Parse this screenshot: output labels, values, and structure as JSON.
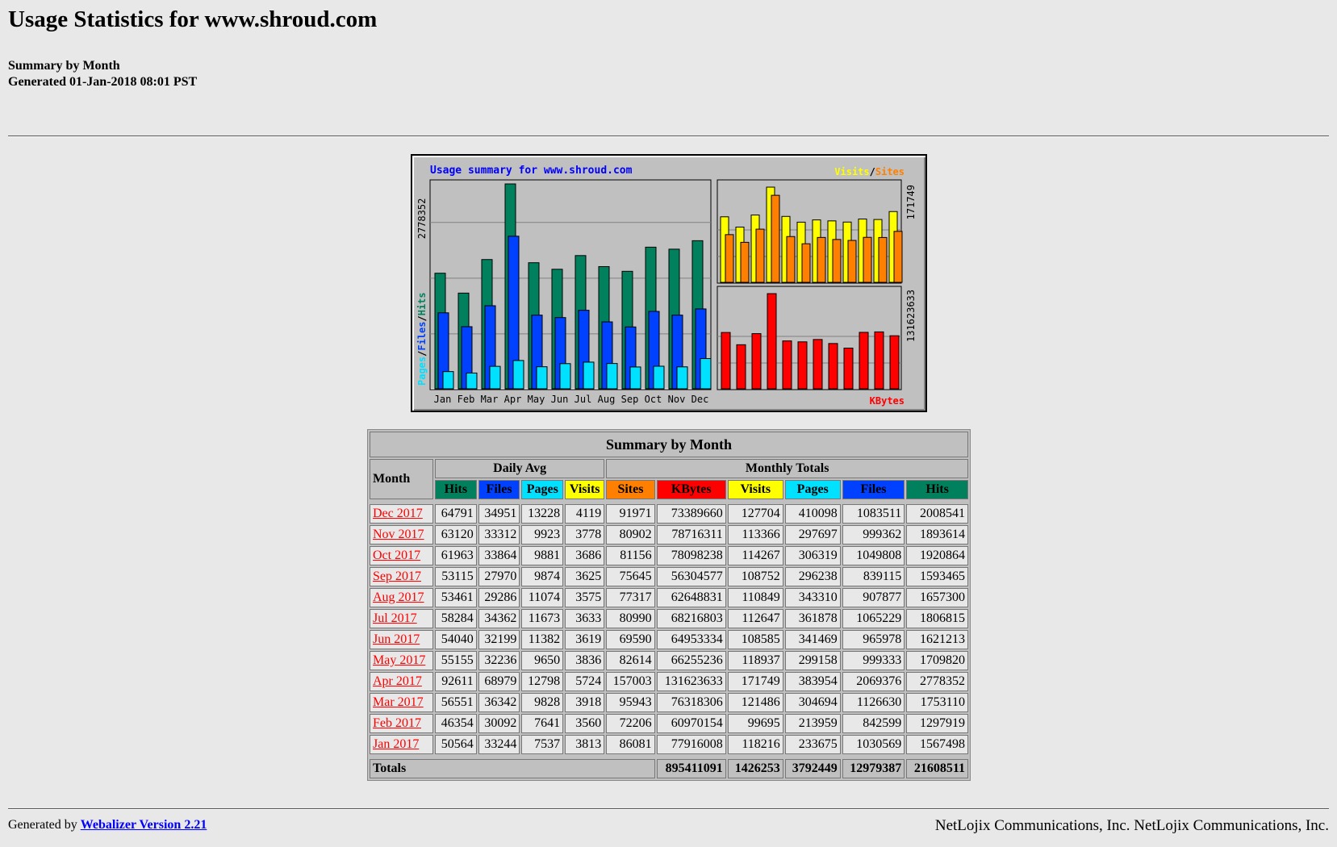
{
  "page": {
    "title": "Usage Statistics for www.shroud.com",
    "subtitle": "Summary by Month",
    "generated": "Generated 01-Jan-2018 08:01 PST"
  },
  "colors": {
    "hits": "#00805C",
    "files": "#0040FF",
    "pages": "#00E0FF",
    "visits": "#FFFF00",
    "sites": "#FF8000",
    "kbytes": "#FF0000"
  },
  "chart_data": {
    "type": "bar",
    "title": "Usage summary for www.shroud.com",
    "categories": [
      "Jan",
      "Feb",
      "Mar",
      "Apr",
      "May",
      "Jun",
      "Jul",
      "Aug",
      "Sep",
      "Oct",
      "Nov",
      "Dec"
    ],
    "left_panel": {
      "ylabel_pages": "Pages",
      "ylabel_files": "Files",
      "ylabel_hits": "Hits",
      "ymax": 2778352,
      "ymax_label": "2778352",
      "series": [
        {
          "name": "Hits",
          "color": "#00805C",
          "values": [
            1567498,
            1297919,
            1753110,
            2778352,
            1709820,
            1621213,
            1806815,
            1657300,
            1593465,
            1920864,
            1893614,
            2008541
          ]
        },
        {
          "name": "Files",
          "color": "#0040FF",
          "values": [
            1030569,
            842599,
            1126630,
            2069376,
            999333,
            965978,
            1065229,
            907877,
            839115,
            1049808,
            999362,
            1083511
          ]
        },
        {
          "name": "Pages",
          "color": "#00E0FF",
          "values": [
            233675,
            213959,
            304694,
            383954,
            299158,
            341469,
            361878,
            343310,
            296238,
            306319,
            297697,
            410098
          ]
        }
      ]
    },
    "right_top_panel": {
      "legend_visits": "Visits",
      "legend_sep": "/",
      "legend_sites": "Sites",
      "ymax": 171749,
      "ymax_label": "171749",
      "series": [
        {
          "name": "Visits",
          "color": "#FFFF00",
          "values": [
            118216,
            99695,
            121486,
            171749,
            118937,
            108585,
            112647,
            110849,
            108752,
            114267,
            113366,
            127704
          ]
        },
        {
          "name": "Sites",
          "color": "#FF8000",
          "values": [
            86081,
            72206,
            95943,
            157003,
            82614,
            69590,
            80990,
            77317,
            75645,
            81156,
            80902,
            91971
          ]
        }
      ]
    },
    "right_bottom_panel": {
      "legend": "KBytes",
      "ymax": 131623633,
      "ymax_label": "131623633",
      "series": [
        {
          "name": "KBytes",
          "color": "#FF0000",
          "values": [
            77916008,
            60970154,
            76318306,
            131623633,
            66255236,
            64953334,
            68216803,
            62648831,
            56304577,
            78098238,
            78716311,
            73389660
          ]
        }
      ]
    }
  },
  "table": {
    "title": "Summary by Month",
    "month_header": "Month",
    "daily_avg_header": "Daily Avg",
    "monthly_totals_header": "Monthly Totals",
    "daily_cols": [
      "Hits",
      "Files",
      "Pages",
      "Visits"
    ],
    "monthly_cols": [
      "Sites",
      "KBytes",
      "Visits",
      "Pages",
      "Files",
      "Hits"
    ],
    "rows": [
      {
        "month": "Dec 2017",
        "d": [
          "64791",
          "34951",
          "13228",
          "4119"
        ],
        "m": [
          "91971",
          "73389660",
          "127704",
          "410098",
          "1083511",
          "2008541"
        ]
      },
      {
        "month": "Nov 2017",
        "d": [
          "63120",
          "33312",
          "9923",
          "3778"
        ],
        "m": [
          "80902",
          "78716311",
          "113366",
          "297697",
          "999362",
          "1893614"
        ]
      },
      {
        "month": "Oct 2017",
        "d": [
          "61963",
          "33864",
          "9881",
          "3686"
        ],
        "m": [
          "81156",
          "78098238",
          "114267",
          "306319",
          "1049808",
          "1920864"
        ]
      },
      {
        "month": "Sep 2017",
        "d": [
          "53115",
          "27970",
          "9874",
          "3625"
        ],
        "m": [
          "75645",
          "56304577",
          "108752",
          "296238",
          "839115",
          "1593465"
        ]
      },
      {
        "month": "Aug 2017",
        "d": [
          "53461",
          "29286",
          "11074",
          "3575"
        ],
        "m": [
          "77317",
          "62648831",
          "110849",
          "343310",
          "907877",
          "1657300"
        ]
      },
      {
        "month": "Jul 2017",
        "d": [
          "58284",
          "34362",
          "11673",
          "3633"
        ],
        "m": [
          "80990",
          "68216803",
          "112647",
          "361878",
          "1065229",
          "1806815"
        ]
      },
      {
        "month": "Jun 2017",
        "d": [
          "54040",
          "32199",
          "11382",
          "3619"
        ],
        "m": [
          "69590",
          "64953334",
          "108585",
          "341469",
          "965978",
          "1621213"
        ]
      },
      {
        "month": "May 2017",
        "d": [
          "55155",
          "32236",
          "9650",
          "3836"
        ],
        "m": [
          "82614",
          "66255236",
          "118937",
          "299158",
          "999333",
          "1709820"
        ]
      },
      {
        "month": "Apr 2017",
        "d": [
          "92611",
          "68979",
          "12798",
          "5724"
        ],
        "m": [
          "157003",
          "131623633",
          "171749",
          "383954",
          "2069376",
          "2778352"
        ]
      },
      {
        "month": "Mar 2017",
        "d": [
          "56551",
          "36342",
          "9828",
          "3918"
        ],
        "m": [
          "95943",
          "76318306",
          "121486",
          "304694",
          "1126630",
          "1753110"
        ]
      },
      {
        "month": "Feb 2017",
        "d": [
          "46354",
          "30092",
          "7641",
          "3560"
        ],
        "m": [
          "72206",
          "60970154",
          "99695",
          "213959",
          "842599",
          "1297919"
        ]
      },
      {
        "month": "Jan 2017",
        "d": [
          "50564",
          "33244",
          "7537",
          "3813"
        ],
        "m": [
          "86081",
          "77916008",
          "118216",
          "233675",
          "1030569",
          "1567498"
        ]
      }
    ],
    "totals": {
      "label": "Totals",
      "values": [
        "895411091",
        "1426253",
        "3792449",
        "12979387",
        "21608511"
      ]
    }
  },
  "footer": {
    "generated_by": "Generated by",
    "link_text": "Webalizer Version 2.21",
    "company": "NetLojix Communications, Inc. NetLojix Communications, Inc."
  }
}
